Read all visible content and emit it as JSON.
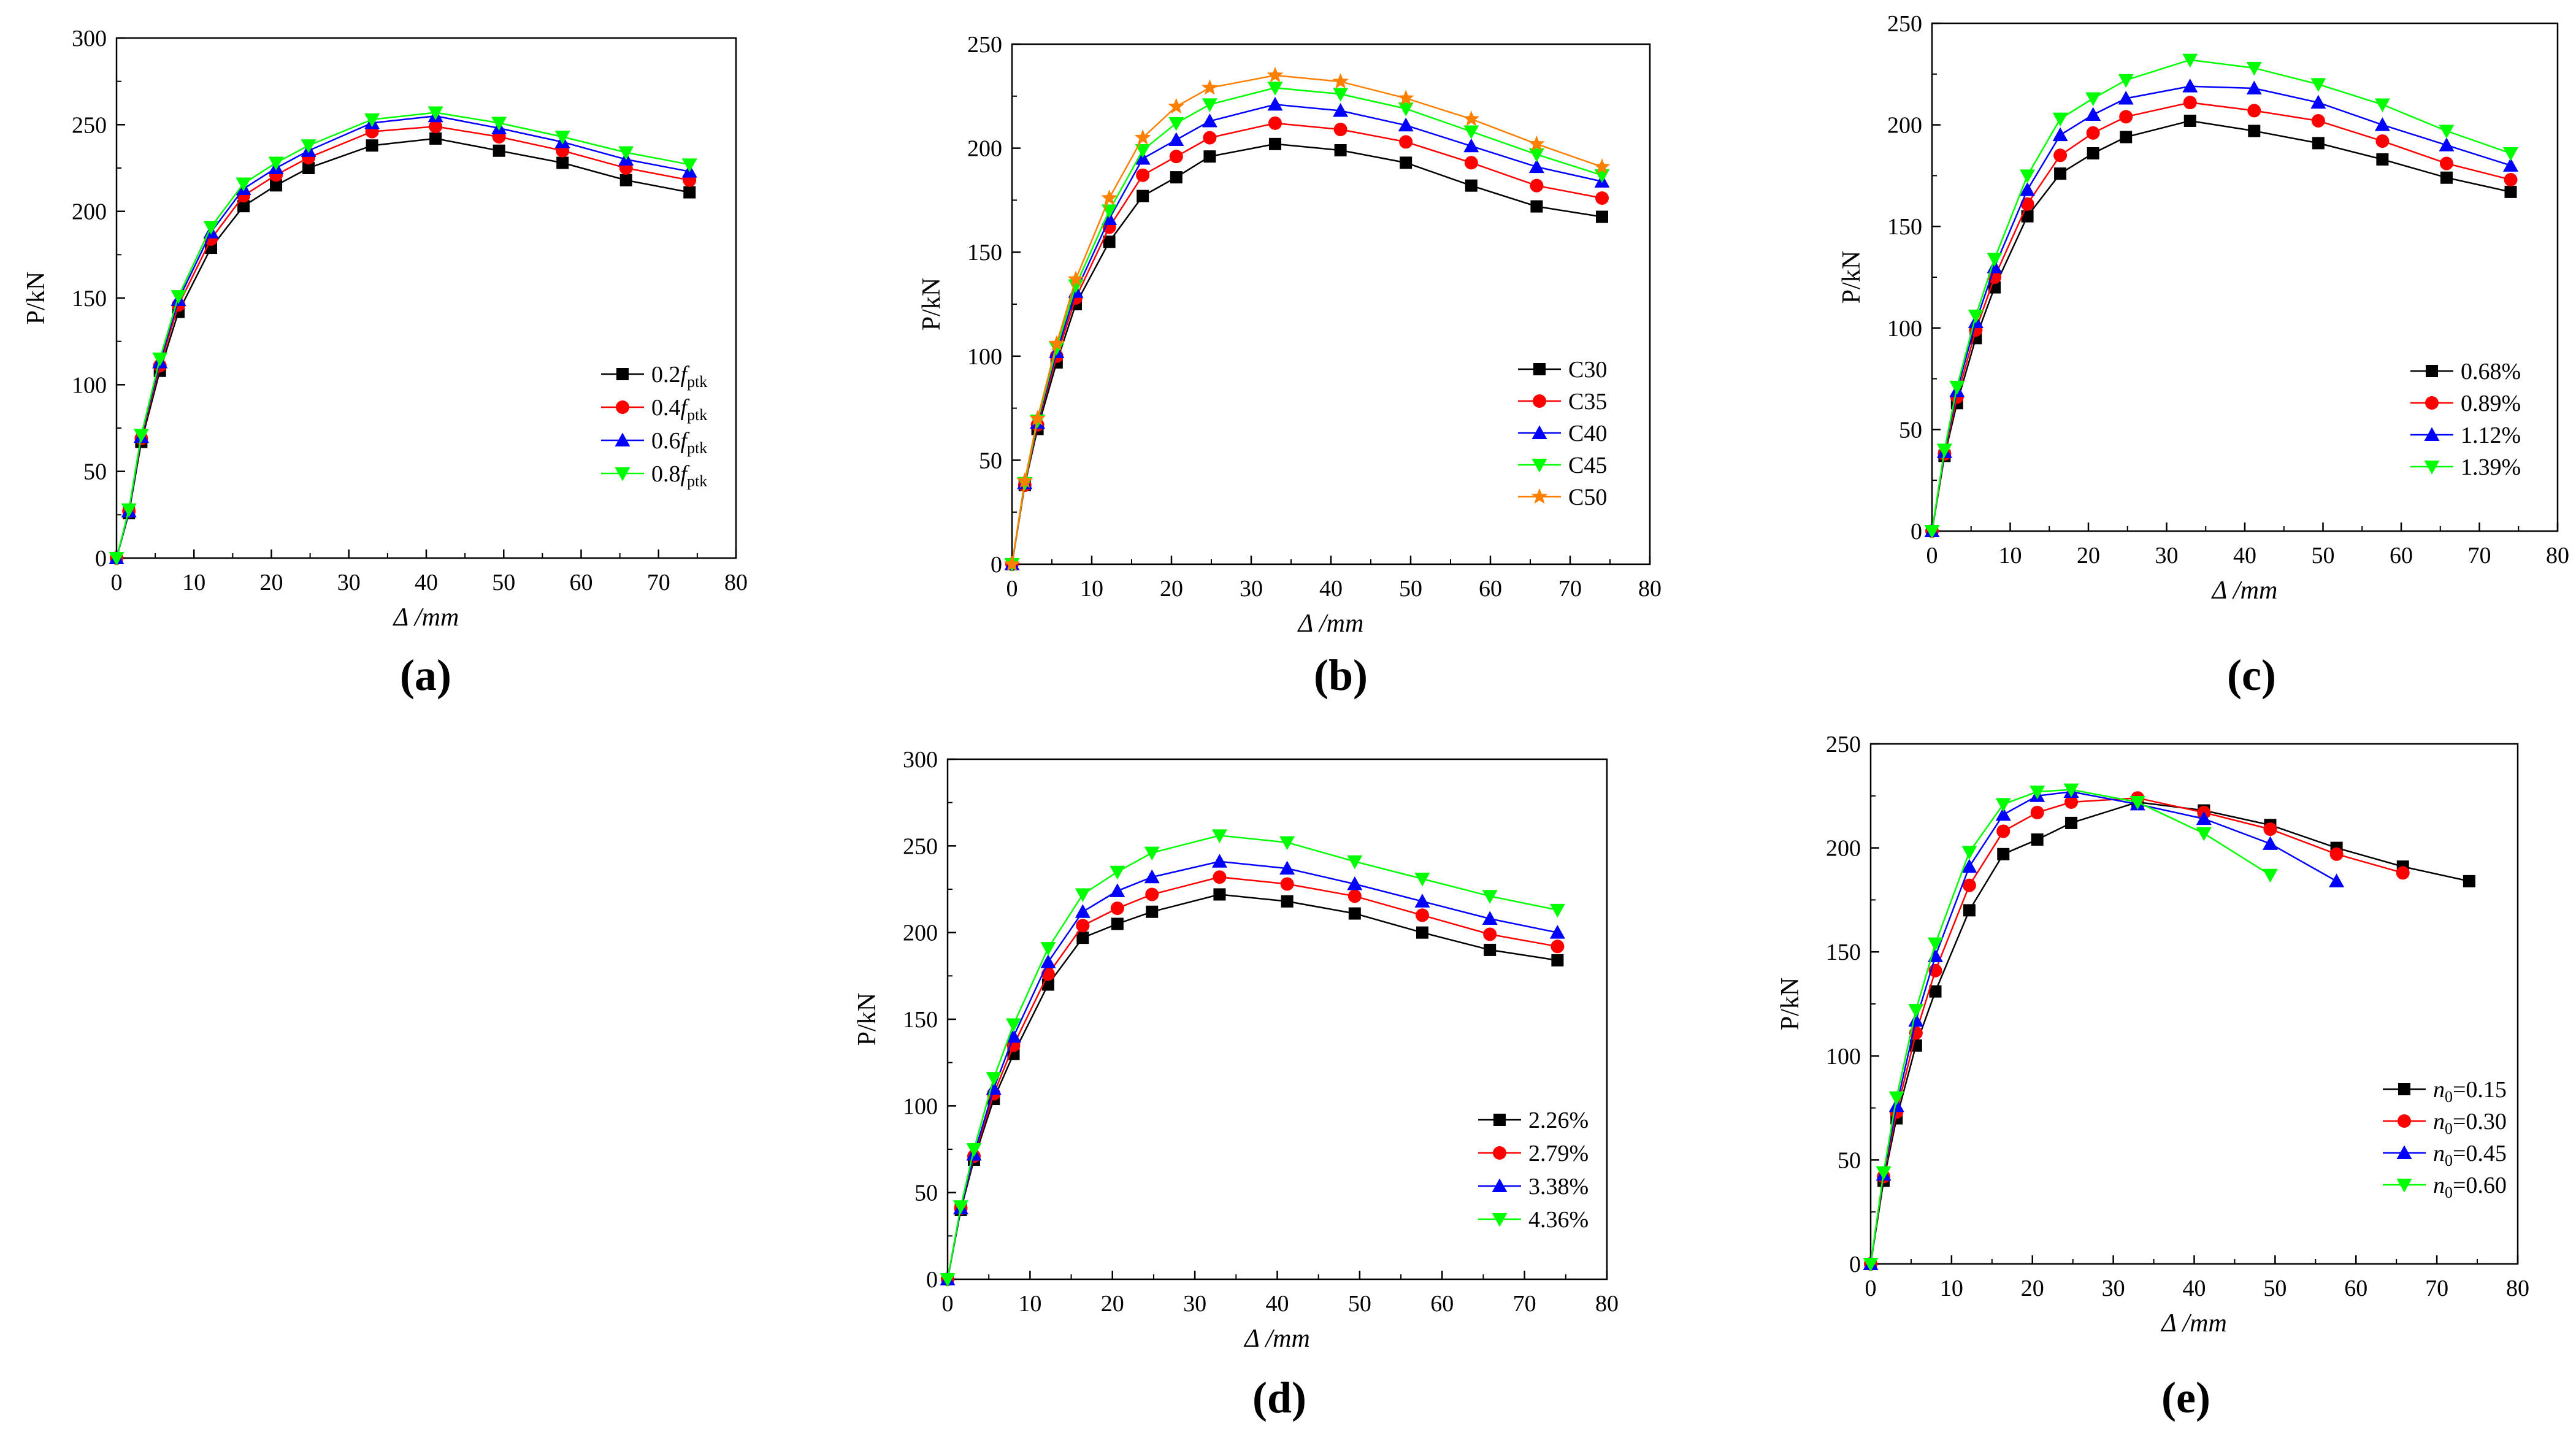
{
  "legend_sub": "ptk",
  "chart_data": [
    {
      "id": "a",
      "type": "line",
      "caption": "(a)",
      "xlabel": "Δ /mm",
      "ylabel": "P/kN",
      "xlim": [
        0,
        80
      ],
      "ylim": [
        0,
        300
      ],
      "xticks": [
        0,
        10,
        20,
        30,
        40,
        50,
        60,
        70,
        80
      ],
      "yticks": [
        0,
        50,
        100,
        150,
        200,
        250,
        300
      ],
      "legend_position": "right-middle",
      "x": [
        0,
        1.6,
        3.2,
        5.6,
        8,
        12.2,
        16.4,
        20.6,
        24.8,
        33,
        41.2,
        49.4,
        57.6,
        65.8,
        74
      ],
      "series": [
        {
          "name": "0.2f",
          "label": "0.2",
          "italic": "f",
          "sub": "ptk",
          "color": "#000000",
          "marker": "square",
          "values": [
            0,
            26,
            67,
            108,
            142,
            179,
            203,
            215,
            225,
            238,
            242,
            235,
            228,
            218,
            211
          ]
        },
        {
          "name": "0.4f",
          "label": "0.4",
          "italic": "f",
          "sub": "ptk",
          "color": "#ff0000",
          "marker": "circle",
          "values": [
            0,
            27,
            69,
            111,
            146,
            184,
            209,
            221,
            231,
            246,
            249,
            243,
            235,
            225,
            218
          ]
        },
        {
          "name": "0.6f",
          "label": "0.6",
          "italic": "f",
          "sub": "ptk",
          "color": "#0000ff",
          "marker": "triangle-up",
          "values": [
            0,
            27,
            70,
            113,
            149,
            188,
            213,
            225,
            235,
            251,
            255,
            248,
            240,
            230,
            223
          ]
        },
        {
          "name": "0.8f",
          "label": "0.8",
          "italic": "f",
          "sub": "ptk",
          "color": "#00ff00",
          "marker": "triangle-down",
          "values": [
            0,
            28,
            71,
            115,
            151,
            191,
            216,
            228,
            238,
            253,
            257,
            251,
            243,
            234,
            227
          ]
        }
      ]
    },
    {
      "id": "b",
      "type": "line",
      "caption": "(b)",
      "xlabel": "Δ /mm",
      "ylabel": "P/kN",
      "xlim": [
        0,
        80
      ],
      "ylim": [
        0,
        250
      ],
      "xticks": [
        0,
        10,
        20,
        30,
        40,
        50,
        60,
        70,
        80
      ],
      "yticks": [
        0,
        50,
        100,
        150,
        200,
        250
      ],
      "legend_position": "right-middle",
      "x": [
        0,
        1.6,
        3.2,
        5.6,
        8,
        12.2,
        16.4,
        20.6,
        24.8,
        33,
        41.2,
        49.4,
        57.6,
        65.8,
        74
      ],
      "series": [
        {
          "name": "C30",
          "label": "C30",
          "color": "#000000",
          "marker": "square",
          "values": [
            0,
            38,
            65,
            97,
            125,
            155,
            177,
            186,
            196,
            202,
            199,
            193,
            182,
            172,
            167
          ]
        },
        {
          "name": "C35",
          "label": "C35",
          "color": "#ff0000",
          "marker": "circle",
          "values": [
            0,
            38,
            67,
            100,
            128,
            162,
            187,
            196,
            205,
            212,
            209,
            203,
            193,
            182,
            176
          ]
        },
        {
          "name": "C40",
          "label": "C40",
          "color": "#0000ff",
          "marker": "triangle-up",
          "values": [
            0,
            39,
            68,
            102,
            131,
            166,
            195,
            204,
            213,
            221,
            218,
            211,
            201,
            191,
            184
          ]
        },
        {
          "name": "C45",
          "label": "C45",
          "color": "#00ff00",
          "marker": "triangle-down",
          "values": [
            0,
            39,
            69,
            104,
            134,
            170,
            199,
            212,
            221,
            229,
            226,
            219,
            208,
            197,
            187
          ]
        },
        {
          "name": "C50",
          "label": "C50",
          "color": "#ff8000",
          "marker": "star",
          "values": [
            0,
            40,
            70,
            106,
            137,
            176,
            205,
            220,
            229,
            235,
            232,
            224,
            214,
            202,
            191
          ]
        }
      ]
    },
    {
      "id": "c",
      "type": "line",
      "caption": "(c)",
      "xlabel": "Δ /mm",
      "ylabel": "P/kN",
      "xlim": [
        0,
        80
      ],
      "ylim": [
        0,
        250
      ],
      "xticks": [
        0,
        10,
        20,
        30,
        40,
        50,
        60,
        70,
        80
      ],
      "yticks": [
        0,
        50,
        100,
        150,
        200,
        250
      ],
      "legend_position": "right-middle",
      "x": [
        0,
        1.6,
        3.2,
        5.6,
        8,
        12.2,
        16.4,
        20.6,
        24.8,
        33,
        41.2,
        49.4,
        57.6,
        65.8,
        74
      ],
      "series": [
        {
          "name": "0.68%",
          "label": "0.68%",
          "color": "#000000",
          "marker": "square",
          "values": [
            0,
            37,
            63,
            95,
            120,
            155,
            176,
            186,
            194,
            202,
            197,
            191,
            183,
            174,
            167
          ]
        },
        {
          "name": "0.89%",
          "label": "0.89%",
          "color": "#ff0000",
          "marker": "circle",
          "values": [
            0,
            38,
            66,
            99,
            125,
            161,
            185,
            196,
            204,
            211,
            207,
            202,
            192,
            181,
            173
          ]
        },
        {
          "name": "1.12%",
          "label": "1.12%",
          "color": "#0000ff",
          "marker": "triangle-up",
          "values": [
            0,
            39,
            69,
            103,
            130,
            168,
            195,
            205,
            213,
            219,
            218,
            211,
            200,
            190,
            180
          ]
        },
        {
          "name": "1.39%",
          "label": "1.39%",
          "color": "#00ff00",
          "marker": "triangle-down",
          "values": [
            0,
            40,
            71,
            106,
            134,
            175,
            203,
            213,
            222,
            232,
            228,
            220,
            210,
            197,
            186
          ]
        }
      ]
    },
    {
      "id": "d",
      "type": "line",
      "caption": "(d)",
      "xlabel": "Δ /mm",
      "ylabel": "P/kN",
      "xlim": [
        0,
        80
      ],
      "ylim": [
        0,
        300
      ],
      "xticks": [
        0,
        10,
        20,
        30,
        40,
        50,
        60,
        70,
        80
      ],
      "yticks": [
        0,
        50,
        100,
        150,
        200,
        250,
        300
      ],
      "legend_position": "right-middle",
      "x": [
        0,
        1.6,
        3.2,
        5.6,
        8,
        12.2,
        16.4,
        20.6,
        24.8,
        33,
        41.2,
        49.4,
        57.6,
        65.8,
        74
      ],
      "series": [
        {
          "name": "2.26%",
          "label": "2.26%",
          "color": "#000000",
          "marker": "square",
          "values": [
            0,
            40,
            69,
            104,
            130,
            170,
            197,
            205,
            212,
            222,
            218,
            211,
            200,
            190,
            184
          ]
        },
        {
          "name": "2.79%",
          "label": "2.79%",
          "color": "#ff0000",
          "marker": "circle",
          "values": [
            0,
            41,
            71,
            107,
            135,
            176,
            204,
            214,
            222,
            232,
            228,
            221,
            210,
            199,
            192
          ]
        },
        {
          "name": "3.38%",
          "label": "3.38%",
          "color": "#0000ff",
          "marker": "triangle-up",
          "values": [
            0,
            41,
            72,
            110,
            140,
            183,
            212,
            224,
            232,
            241,
            237,
            228,
            218,
            208,
            200
          ]
        },
        {
          "name": "4.36%",
          "label": "4.36%",
          "color": "#00ff00",
          "marker": "triangle-down",
          "values": [
            0,
            42,
            75,
            116,
            147,
            191,
            222,
            235,
            246,
            256,
            252,
            241,
            231,
            221,
            213
          ]
        }
      ]
    },
    {
      "id": "e",
      "type": "line",
      "caption": "(e)",
      "xlabel": "Δ /mm",
      "ylabel": "P/kN",
      "xlim": [
        0,
        80
      ],
      "ylim": [
        0,
        250
      ],
      "xticks": [
        0,
        10,
        20,
        30,
        40,
        50,
        60,
        70,
        80
      ],
      "yticks": [
        0,
        50,
        100,
        150,
        200,
        250
      ],
      "legend_position": "right-middle",
      "series": [
        {
          "name": "n0=0.15",
          "label": "=0.15",
          "italic": "n",
          "sub": "0",
          "color": "#000000",
          "marker": "square",
          "x": [
            0,
            1.6,
            3.2,
            5.6,
            8,
            12.2,
            16.4,
            20.6,
            24.8,
            33,
            41.2,
            49.4,
            57.6,
            65.8,
            74
          ],
          "values": [
            0,
            40,
            70,
            105,
            131,
            170,
            197,
            204,
            212,
            222,
            218,
            211,
            200,
            191,
            184
          ]
        },
        {
          "name": "n0=0.30",
          "label": "=0.30",
          "italic": "n",
          "sub": "0",
          "color": "#ff0000",
          "marker": "circle",
          "x": [
            0,
            1.6,
            3.2,
            5.6,
            8,
            12.2,
            16.4,
            20.6,
            24.8,
            33,
            41.2,
            49.4,
            57.6,
            65.8
          ],
          "values": [
            0,
            42,
            73,
            111,
            141,
            182,
            208,
            217,
            222,
            224,
            217,
            209,
            197,
            188
          ]
        },
        {
          "name": "n0=0.45",
          "label": "=0.45",
          "italic": "n",
          "sub": "0",
          "color": "#0000ff",
          "marker": "triangle-up",
          "x": [
            0,
            1.6,
            3.2,
            5.6,
            8,
            12.2,
            16.4,
            20.6,
            24.8,
            33,
            41.2,
            49.4,
            57.6
          ],
          "values": [
            0,
            43,
            76,
            117,
            148,
            191,
            216,
            225,
            227,
            221,
            214,
            202,
            184
          ]
        },
        {
          "name": "n0=0.60",
          "label": "=0.60",
          "italic": "n",
          "sub": "0",
          "color": "#00ff00",
          "marker": "triangle-down",
          "x": [
            0,
            1.6,
            3.2,
            5.6,
            8,
            12.2,
            16.4,
            20.6,
            24.8,
            33,
            41.2,
            49.4
          ],
          "values": [
            0,
            44,
            80,
            122,
            154,
            198,
            221,
            227,
            228,
            222,
            207,
            187
          ]
        }
      ]
    }
  ]
}
